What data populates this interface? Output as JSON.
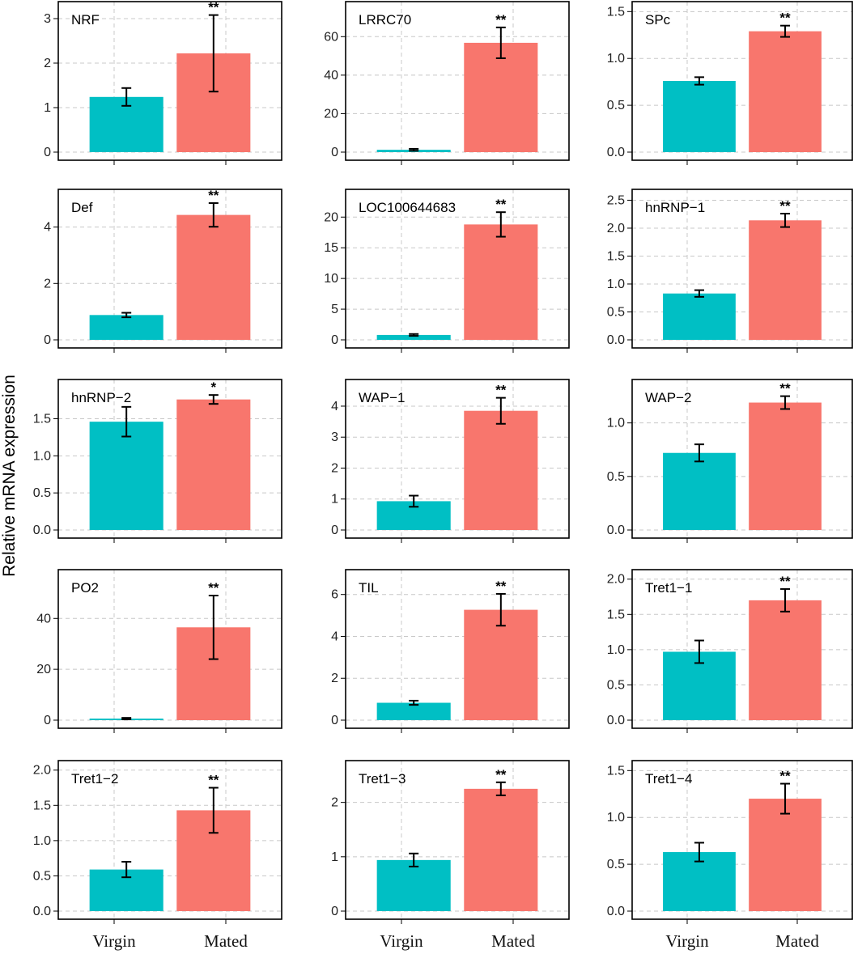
{
  "colors": {
    "virgin": "#00BFC4",
    "mated": "#F8766D",
    "grid": "#C8C8C8",
    "axis": "#000000"
  },
  "chart_data": {
    "type": "bar",
    "layout": "faceted grid, 5 rows x 3 columns",
    "ylabel": "Relative mRNA expression",
    "categories": [
      "Virgin",
      "Mated"
    ],
    "panels": [
      {
        "title": "NRF",
        "ylim": [
          0,
          3.2
        ],
        "ticks": [
          0,
          1,
          2,
          3
        ],
        "tick_labels": [
          "0",
          "1",
          "2",
          "3"
        ],
        "values": [
          1.24,
          2.22
        ],
        "errors": [
          0.2,
          0.86
        ],
        "sig": "**"
      },
      {
        "title": "LRRC70",
        "ylim": [
          0,
          74
        ],
        "ticks": [
          0,
          20,
          40,
          60
        ],
        "tick_labels": [
          "0",
          "20",
          "40",
          "60"
        ],
        "values": [
          1.2,
          56.8
        ],
        "errors": [
          0.5,
          8.0
        ],
        "sig": "**"
      },
      {
        "title": "SPc",
        "ylim": [
          0,
          1.52
        ],
        "ticks": [
          0,
          0.5,
          1,
          1.5
        ],
        "tick_labels": [
          "0.0",
          "0.5",
          "1.0",
          "1.5"
        ],
        "values": [
          0.76,
          1.29
        ],
        "errors": [
          0.04,
          0.06
        ],
        "sig": "**"
      },
      {
        "title": "Def",
        "ylim": [
          0,
          5.05
        ],
        "ticks": [
          0,
          2,
          4
        ],
        "tick_labels": [
          "0",
          "2",
          "4"
        ],
        "values": [
          0.88,
          4.43
        ],
        "errors": [
          0.08,
          0.42
        ],
        "sig": "**"
      },
      {
        "title": "LOC100644683",
        "ylim": [
          0,
          23.2
        ],
        "ticks": [
          0,
          5,
          10,
          15,
          20
        ],
        "tick_labels": [
          "0",
          "5",
          "10",
          "15",
          "20"
        ],
        "values": [
          0.8,
          18.8
        ],
        "errors": [
          0.15,
          2.0
        ],
        "sig": "**"
      },
      {
        "title": "hnRNP−1",
        "ylim": [
          0,
          2.55
        ],
        "ticks": [
          0,
          0.5,
          1,
          1.5,
          2,
          2.5
        ],
        "tick_labels": [
          "0.0",
          "0.5",
          "1.0",
          "1.5",
          "2.0",
          "2.5"
        ],
        "values": [
          0.83,
          2.14
        ],
        "errors": [
          0.06,
          0.12
        ],
        "sig": "**"
      },
      {
        "title": "hnRNP−2",
        "ylim": [
          0,
          1.92
        ],
        "ticks": [
          0,
          0.5,
          1,
          1.5
        ],
        "tick_labels": [
          "0.0",
          "0.5",
          "1.0",
          "1.5"
        ],
        "values": [
          1.46,
          1.76
        ],
        "errors": [
          0.2,
          0.06
        ],
        "sig": "*"
      },
      {
        "title": "WAP−1",
        "ylim": [
          0,
          4.6
        ],
        "ticks": [
          0,
          1,
          2,
          3,
          4
        ],
        "tick_labels": [
          "0",
          "1",
          "2",
          "3",
          "4"
        ],
        "values": [
          0.93,
          3.85
        ],
        "errors": [
          0.18,
          0.42
        ],
        "sig": "**"
      },
      {
        "title": "WAP−2",
        "ylim": [
          0,
          1.33
        ],
        "ticks": [
          0,
          0.5,
          1
        ],
        "tick_labels": [
          "0.0",
          "0.5",
          "1.0"
        ],
        "values": [
          0.72,
          1.19
        ],
        "errors": [
          0.08,
          0.06
        ],
        "sig": "**"
      },
      {
        "title": "PO2",
        "ylim": [
          0,
          56
        ],
        "ticks": [
          0,
          20,
          40
        ],
        "tick_labels": [
          "0",
          "20",
          "40"
        ],
        "values": [
          0.6,
          36.5
        ],
        "errors": [
          0.3,
          12.5
        ],
        "sig": "**"
      },
      {
        "title": "TIL",
        "ylim": [
          0,
          6.8
        ],
        "ticks": [
          0,
          2,
          4,
          6
        ],
        "tick_labels": [
          "0",
          "2",
          "4",
          "6"
        ],
        "values": [
          0.83,
          5.27
        ],
        "errors": [
          0.1,
          0.76
        ],
        "sig": "**"
      },
      {
        "title": "Tret1−1",
        "ylim": [
          0,
          2.02
        ],
        "ticks": [
          0,
          0.5,
          1,
          1.5,
          2
        ],
        "tick_labels": [
          "0.0",
          "0.5",
          "1.0",
          "1.5",
          "2.0"
        ],
        "values": [
          0.97,
          1.7
        ],
        "errors": [
          0.16,
          0.16
        ],
        "sig": "**"
      },
      {
        "title": "Tret1−2",
        "ylim": [
          0,
          2.02
        ],
        "ticks": [
          0,
          0.5,
          1,
          1.5,
          2
        ],
        "tick_labels": [
          "0.0",
          "0.5",
          "1.0",
          "1.5",
          "2.0"
        ],
        "values": [
          0.59,
          1.43
        ],
        "errors": [
          0.11,
          0.32
        ],
        "sig": "**"
      },
      {
        "title": "Tret1−3",
        "ylim": [
          0,
          2.62
        ],
        "ticks": [
          0,
          1,
          2
        ],
        "tick_labels": [
          "0",
          "1",
          "2"
        ],
        "values": [
          0.94,
          2.25
        ],
        "errors": [
          0.12,
          0.12
        ],
        "sig": "**"
      },
      {
        "title": "Tret1−4",
        "ylim": [
          0,
          1.52
        ],
        "ticks": [
          0,
          0.5,
          1,
          1.5
        ],
        "tick_labels": [
          "0.0",
          "0.5",
          "1.0",
          "1.5"
        ],
        "values": [
          0.63,
          1.2
        ],
        "errors": [
          0.1,
          0.16
        ],
        "sig": "**"
      }
    ]
  }
}
